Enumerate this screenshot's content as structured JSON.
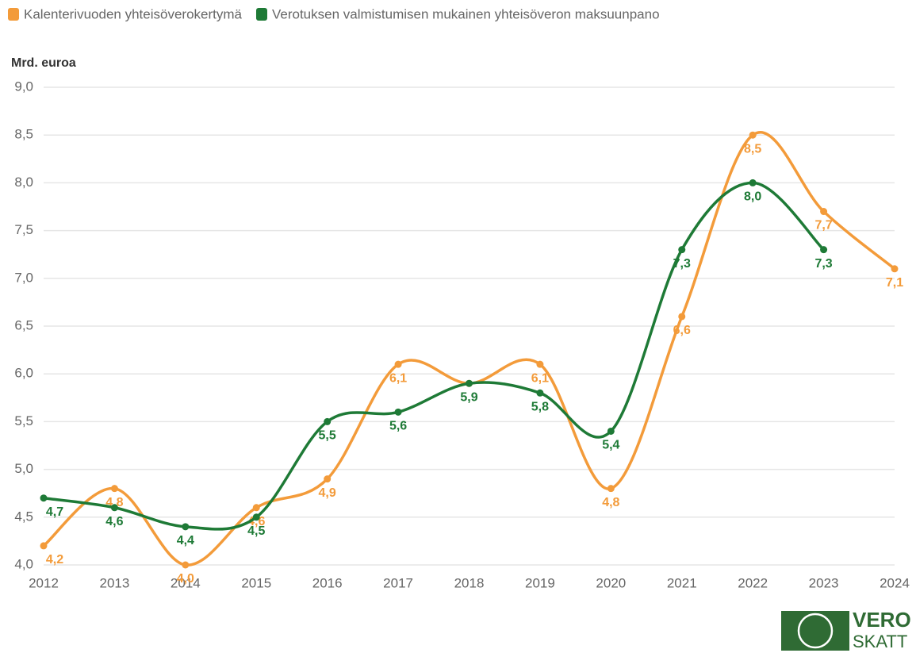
{
  "chart_data": {
    "type": "line",
    "y_axis_label": "Mrd. euroa",
    "categories": [
      "2012",
      "2013",
      "2014",
      "2015",
      "2016",
      "2017",
      "2018",
      "2019",
      "2020",
      "2021",
      "2022",
      "2023",
      "2024"
    ],
    "series": [
      {
        "name": "Kalenterivuoden yhteisöverokertymä",
        "color": "#f39b3a",
        "values": [
          4.2,
          4.8,
          4.0,
          4.6,
          4.9,
          6.1,
          5.9,
          6.1,
          4.8,
          6.6,
          8.5,
          7.7,
          7.1
        ],
        "value_labels": [
          "4,2",
          "4,8",
          "4,0",
          "4,6",
          "4,9",
          "6,1",
          null,
          "6,1",
          "4,8",
          "6,6",
          "8,5",
          "7,7",
          "7,1"
        ]
      },
      {
        "name": "Verotuksen valmistumisen mukainen yhteisöveron maksuunpano",
        "color": "#1e7a36",
        "values": [
          4.7,
          4.6,
          4.4,
          4.5,
          5.5,
          5.6,
          5.9,
          5.8,
          5.4,
          7.3,
          8.0,
          7.3,
          null
        ],
        "value_labels": [
          "4,7",
          "4,6",
          "4,4",
          "4,5",
          "5,5",
          "5,6",
          "5,9",
          "5,8",
          "5,4",
          "7,3",
          "8,0",
          "7,3",
          null
        ]
      }
    ],
    "ylim": [
      4,
      9
    ],
    "yticks": [
      {
        "value": 4,
        "label": "4,0"
      },
      {
        "value": 4.5,
        "label": "4,5"
      },
      {
        "value": 5,
        "label": "5,0"
      },
      {
        "value": 5.5,
        "label": "5,5"
      },
      {
        "value": 6,
        "label": "6,0"
      },
      {
        "value": 6.5,
        "label": "6,5"
      },
      {
        "value": 7,
        "label": "7,0"
      },
      {
        "value": 7.5,
        "label": "7,5"
      },
      {
        "value": 8,
        "label": "8,0"
      },
      {
        "value": 8.5,
        "label": "8,5"
      },
      {
        "value": 9,
        "label": "9,0"
      }
    ],
    "grid": true,
    "legend": "top-left"
  },
  "logo": {
    "top": "VERO",
    "bottom": "SKATT"
  }
}
